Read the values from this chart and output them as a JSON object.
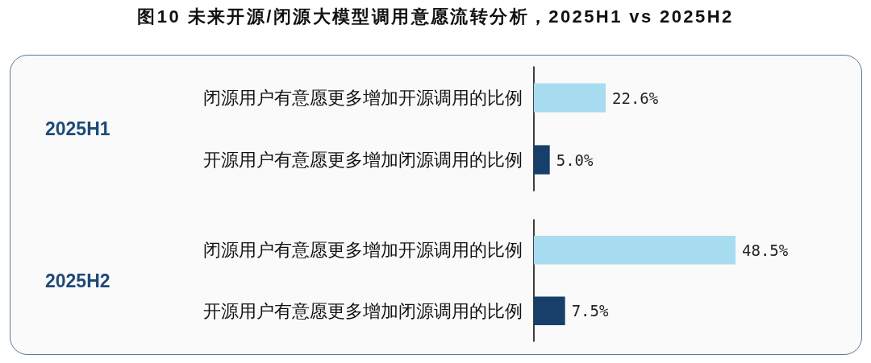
{
  "chart_data": [
    {
      "type": "bar",
      "orientation": "horizontal",
      "title": "图10 未来开源/闭源大模型调用意愿流转分析，2025H1 vs 2025H2",
      "ylabel": "2025H1",
      "categories": [
        "闭源用户有意愿更多增加开源调用的比例",
        "开源用户有意愿更多增加闭源调用的比例"
      ],
      "values": [
        22.6,
        5.0
      ],
      "colors": [
        "#a8dcf0",
        "#173f6a"
      ],
      "value_labels": [
        "22.6%",
        "5.0%"
      ],
      "tick_labels": "y"
    },
    {
      "type": "bar",
      "orientation": "horizontal",
      "ylabel": "2025H2",
      "categories": [
        "闭源用户有意愿更多增加开源调用的比例",
        "开源用户有意愿更多增加闭源调用的比例"
      ],
      "values": [
        48.5,
        7.5
      ],
      "colors": [
        "#a8dcf0",
        "#173f6a"
      ],
      "value_labels": [
        "48.5%",
        "7.5%"
      ],
      "tick_labels": "y"
    }
  ]
}
